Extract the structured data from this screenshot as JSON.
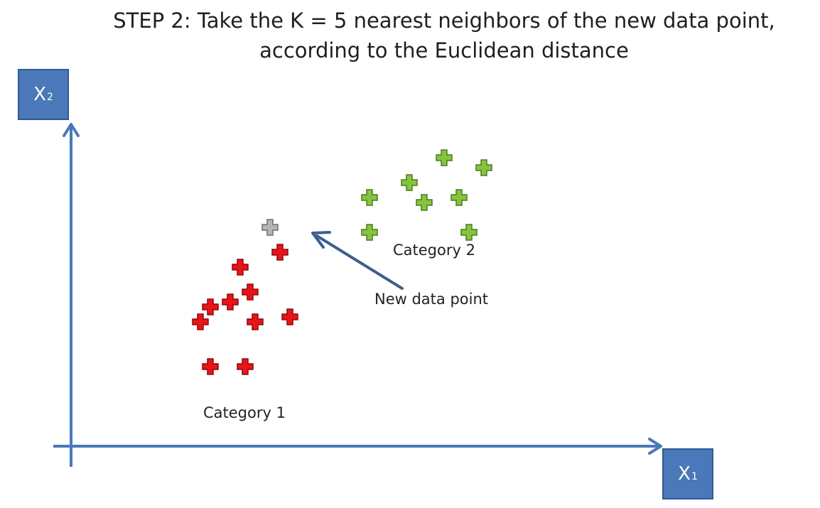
{
  "title": {
    "step": "STEP 2",
    "line1_rest": ": Take the K = 5 nearest neighbors of the new data point,",
    "line2": "according to the Euclidean distance"
  },
  "axes": {
    "x_label": "X",
    "x_sub": "1",
    "y_label": "X",
    "y_sub": "2",
    "color": "#4a78b9"
  },
  "categories": {
    "category1": {
      "label": "Category 1",
      "color": "#e8141a"
    },
    "category2": {
      "label": "Category 2",
      "color": "#86c440"
    }
  },
  "new_point": {
    "label": "New data point",
    "color": "#b5b5b5"
  },
  "chart_data": {
    "type": "scatter",
    "xlabel": "X1",
    "ylabel": "X2",
    "series": [
      {
        "name": "Category 1",
        "marker": "plus",
        "points": [
          [
            3.4,
            3.6
          ],
          [
            4.2,
            3.9
          ],
          [
            2.8,
            2.8
          ],
          [
            3.2,
            2.9
          ],
          [
            2.6,
            2.5
          ],
          [
            3.7,
            2.5
          ],
          [
            4.4,
            2.6
          ],
          [
            2.8,
            1.6
          ],
          [
            3.5,
            1.6
          ],
          [
            3.6,
            3.1
          ]
        ]
      },
      {
        "name": "Category 2",
        "marker": "plus",
        "points": [
          [
            6.0,
            5.0
          ],
          [
            6.8,
            5.3
          ],
          [
            7.5,
            5.8
          ],
          [
            8.3,
            5.6
          ],
          [
            7.1,
            4.9
          ],
          [
            7.8,
            5.0
          ],
          [
            6.0,
            4.3
          ],
          [
            8.0,
            4.3
          ]
        ]
      },
      {
        "name": "New data point",
        "marker": "plus",
        "points": [
          [
            4.0,
            4.4
          ]
        ]
      }
    ]
  }
}
